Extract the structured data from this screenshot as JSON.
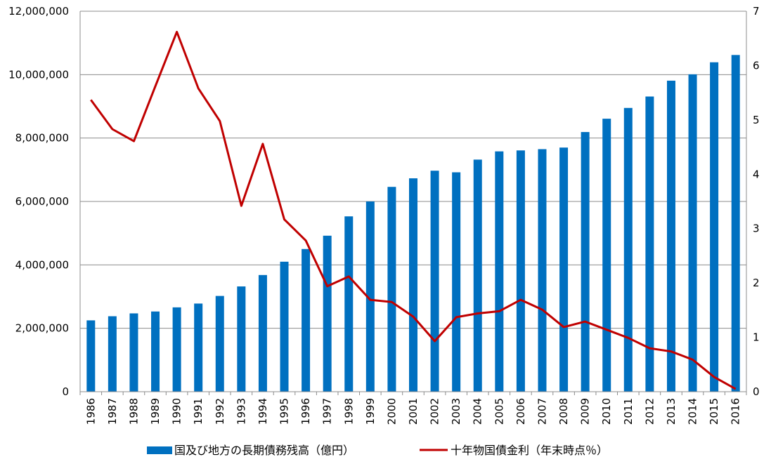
{
  "chart_data": {
    "type": "bar+line",
    "categories": [
      "1986",
      "1987",
      "1988",
      "1989",
      "1990",
      "1991",
      "1992",
      "1993",
      "1994",
      "1995",
      "1996",
      "1997",
      "1998",
      "1999",
      "2000",
      "2001",
      "2002",
      "2003",
      "2004",
      "2005",
      "2006",
      "2007",
      "2008",
      "2009",
      "2010",
      "2011",
      "2012",
      "2013",
      "2014",
      "2015",
      "2016"
    ],
    "series": [
      {
        "name": "国及び地方の長期債務残高（億円）",
        "type": "bar",
        "axis": "left",
        "color": "#0070C0",
        "values": [
          2250000,
          2380000,
          2470000,
          2530000,
          2660000,
          2780000,
          3020000,
          3320000,
          3680000,
          4100000,
          4500000,
          4920000,
          5530000,
          6000000,
          6460000,
          6730000,
          6970000,
          6920000,
          7320000,
          7580000,
          7610000,
          7650000,
          7700000,
          8190000,
          8610000,
          8950000,
          9310000,
          9810000,
          10010000,
          10390000,
          10620000
        ]
      },
      {
        "name": "十年物国債金利（年末時点％）",
        "type": "line",
        "axis": "right",
        "color": "#C00000",
        "values": [
          5.37,
          4.83,
          4.61,
          5.62,
          6.62,
          5.58,
          4.98,
          3.42,
          4.56,
          3.17,
          2.78,
          1.94,
          2.12,
          1.69,
          1.65,
          1.38,
          0.93,
          1.37,
          1.44,
          1.48,
          1.69,
          1.51,
          1.19,
          1.29,
          1.14,
          0.99,
          0.8,
          0.74,
          0.59,
          0.27,
          0.05
        ]
      }
    ],
    "y_left": {
      "ylim": [
        0,
        12000000
      ],
      "ticks": [
        "0",
        "2,000,000",
        "4,000,000",
        "6,000,000",
        "8,000,000",
        "10,000,000",
        "12,000,000"
      ]
    },
    "y_right": {
      "ylim": [
        0,
        7
      ],
      "ticks": [
        "0",
        "1",
        "2",
        "3",
        "4",
        "5",
        "6",
        "7"
      ]
    },
    "grid": "horizontal",
    "legend_position": "bottom"
  }
}
